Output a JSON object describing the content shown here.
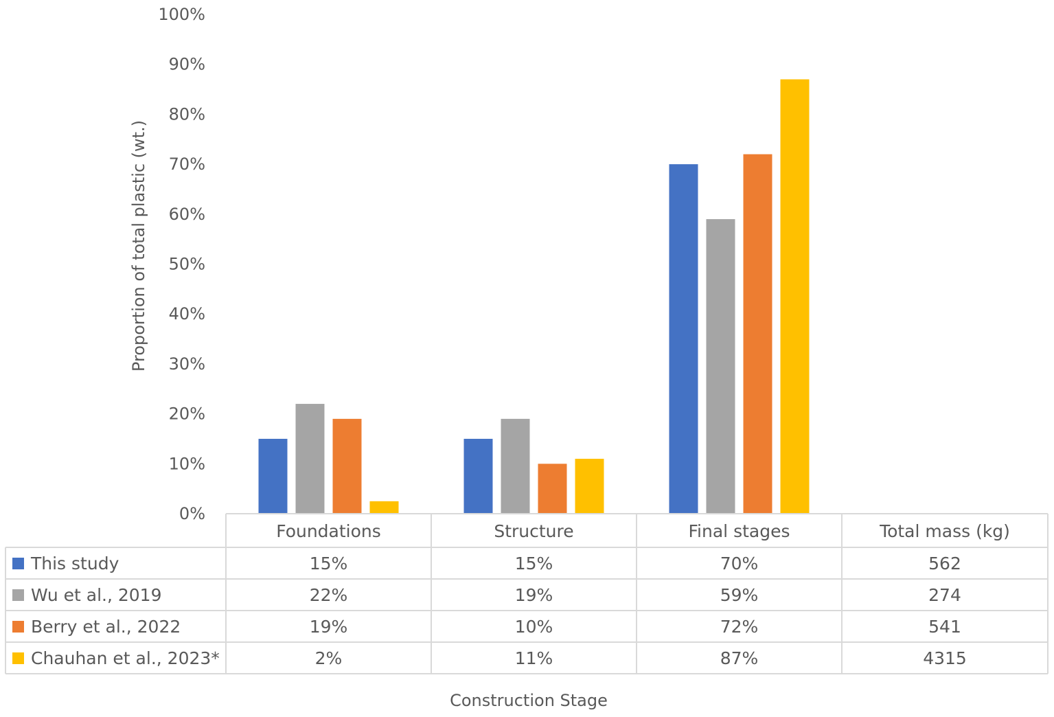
{
  "chart_data": {
    "type": "bar",
    "title": "",
    "xlabel": "Construction Stage",
    "ylabel": "Proportion of total plastic (wt.)",
    "ylim": [
      0,
      100
    ],
    "y_ticks": [
      "0%",
      "10%",
      "20%",
      "30%",
      "40%",
      "50%",
      "60%",
      "70%",
      "80%",
      "90%",
      "100%"
    ],
    "categories": [
      "Foundations",
      "Structure",
      "Final stages"
    ],
    "extra_column_header": "Total mass (kg)",
    "series": [
      {
        "name": "This study",
        "color": "#4472C4",
        "values": [
          15,
          15,
          70
        ],
        "labels": [
          "15%",
          "15%",
          "70%"
        ],
        "total_mass": "562"
      },
      {
        "name": "Wu et al., 2019",
        "color": "#A5A5A5",
        "values": [
          22,
          19,
          59
        ],
        "labels": [
          "22%",
          "19%",
          "59%"
        ],
        "total_mass": "274"
      },
      {
        "name": "Berry et al., 2022",
        "color": "#ED7D31",
        "values": [
          19,
          10,
          72
        ],
        "labels": [
          "19%",
          "10%",
          "72%"
        ],
        "total_mass": "541"
      },
      {
        "name": "Chauhan et al., 2023*",
        "color": "#FFC000",
        "values": [
          2.5,
          11,
          87
        ],
        "labels": [
          "2%",
          "11%",
          "87%"
        ],
        "total_mass": "4315"
      }
    ],
    "grid": false,
    "legend": "data-table"
  }
}
